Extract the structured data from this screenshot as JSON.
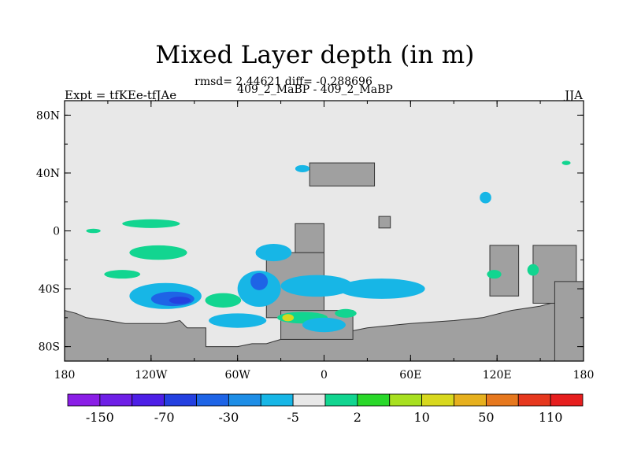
{
  "chart_data": {
    "type": "heatmap",
    "title": "Mixed Layer depth (in m)",
    "stats_line": "rmsd= 2.44621 diff= -0.288696",
    "subtitle": "409_2_MaBP - 409_2_MaBP",
    "left_label": "Expt = tfKEe-tfJAe",
    "right_label": "JJA",
    "x_range": [
      -180,
      180
    ],
    "y_range": [
      -90,
      90
    ],
    "x_ticks": [
      "180",
      "120W",
      "60W",
      "0",
      "60E",
      "120E",
      "180"
    ],
    "y_ticks": [
      "80N",
      "40N",
      "0",
      "40S",
      "80S"
    ],
    "land_color": "#a0a0a0",
    "background_color": "#e8e8e8",
    "colorbar": {
      "colors": [
        "#8a1ee6",
        "#6e1fe6",
        "#4d1fe6",
        "#2440e0",
        "#1e64e6",
        "#1e8ee6",
        "#17b6e6",
        "#e8e8e8",
        "#12d590",
        "#2ad82a",
        "#a8e020",
        "#d8d81e",
        "#e6b01e",
        "#e6781e",
        "#e6381e",
        "#e61e1e"
      ],
      "labels": [
        "-150",
        "-70",
        "-30",
        "-5",
        "2",
        "10",
        "50",
        "110"
      ]
    },
    "regions": [
      {
        "level": "10",
        "lon": -160,
        "lat": 0,
        "w": 10,
        "h": 3
      },
      {
        "level": "10",
        "lon": -120,
        "lat": 5,
        "w": 40,
        "h": 6
      },
      {
        "level": "10",
        "lon": -115,
        "lat": -15,
        "w": 40,
        "h": 10
      },
      {
        "level": "10",
        "lon": -140,
        "lat": -30,
        "w": 25,
        "h": 6
      },
      {
        "level": "10",
        "lon": -70,
        "lat": -48,
        "w": 25,
        "h": 10
      },
      {
        "level": "10",
        "lon": -15,
        "lat": -60,
        "w": 35,
        "h": 8
      },
      {
        "level": "50",
        "lon": -25,
        "lat": -60,
        "w": 8,
        "h": 5
      },
      {
        "level": "10",
        "lon": 15,
        "lat": -57,
        "w": 15,
        "h": 6
      },
      {
        "level": "-5",
        "lon": -110,
        "lat": -45,
        "w": 50,
        "h": 18
      },
      {
        "level": "-30",
        "lon": -105,
        "lat": -47,
        "w": 30,
        "h": 10
      },
      {
        "level": "-70",
        "lon": -100,
        "lat": -48,
        "w": 15,
        "h": 5
      },
      {
        "level": "-5",
        "lon": -45,
        "lat": -40,
        "w": 30,
        "h": 25
      },
      {
        "level": "-30",
        "lon": -45,
        "lat": -35,
        "w": 12,
        "h": 12
      },
      {
        "level": "-5",
        "lon": -5,
        "lat": -38,
        "w": 50,
        "h": 15
      },
      {
        "level": "-5",
        "lon": 40,
        "lat": -40,
        "w": 60,
        "h": 14
      },
      {
        "level": "-5",
        "lon": -60,
        "lat": -62,
        "w": 40,
        "h": 10
      },
      {
        "level": "-5",
        "lon": 0,
        "lat": -65,
        "w": 30,
        "h": 10
      },
      {
        "level": "-5",
        "lon": -35,
        "lat": -15,
        "w": 25,
        "h": 12
      },
      {
        "level": "-5",
        "lon": -15,
        "lat": 43,
        "w": 10,
        "h": 5
      },
      {
        "level": "-5",
        "lon": 112,
        "lat": 23,
        "w": 8,
        "h": 8
      },
      {
        "level": "10",
        "lon": 145,
        "lat": -27,
        "w": 8,
        "h": 8
      },
      {
        "level": "10",
        "lon": 168,
        "lat": 47,
        "w": 6,
        "h": 3
      },
      {
        "level": "10",
        "lon": 118,
        "lat": -30,
        "w": 10,
        "h": 6
      }
    ],
    "land": [
      {
        "lon": -10,
        "lat": 47,
        "w": 45,
        "h": 16
      },
      {
        "lon": -40,
        "lat": -15,
        "w": 40,
        "h": 45
      },
      {
        "lon": -20,
        "lat": 5,
        "w": 20,
        "h": 20
      },
      {
        "lon": 38,
        "lat": 10,
        "w": 8,
        "h": 8
      },
      {
        "lon": 115,
        "lat": -10,
        "w": 20,
        "h": 35
      },
      {
        "lon": 145,
        "lat": -10,
        "w": 30,
        "h": 40
      },
      {
        "lon": 160,
        "lat": -35,
        "w": 20,
        "h": 55
      },
      {
        "lon": -30,
        "lat": -55,
        "w": 50,
        "h": 20
      }
    ]
  }
}
